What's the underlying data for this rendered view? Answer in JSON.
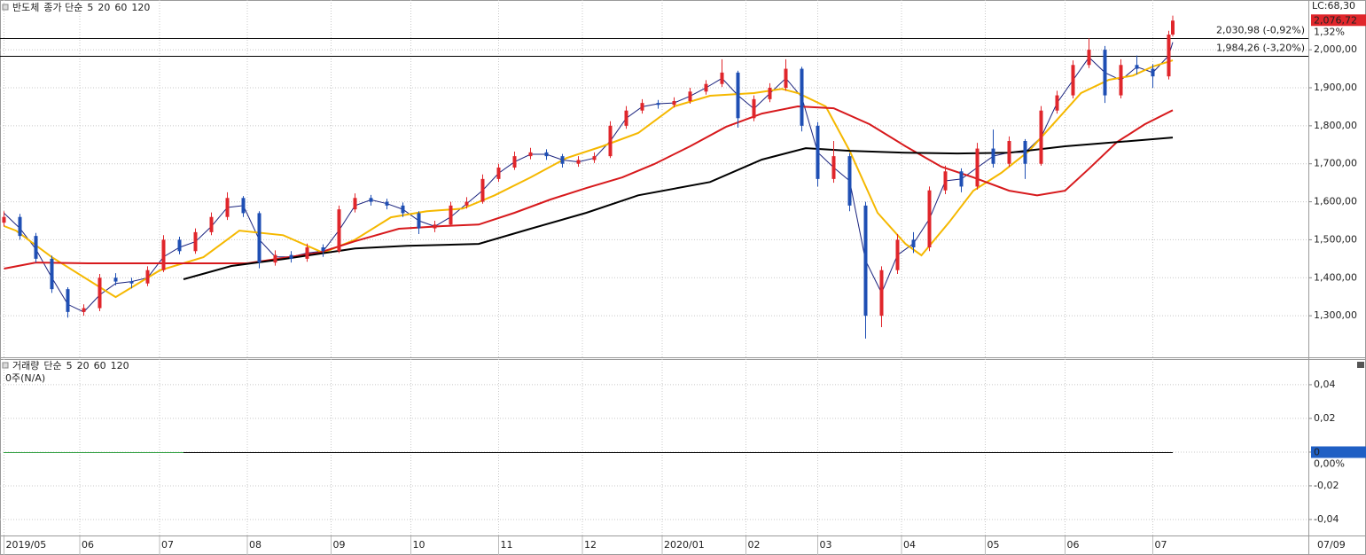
{
  "chart_data": [
    {
      "type": "candlestick",
      "title": "반도체",
      "legend_prefix": "종가 단순",
      "x": [
        0,
        4,
        8,
        12,
        16,
        20,
        24,
        28,
        32,
        36,
        40,
        44,
        48,
        52,
        56,
        60,
        64,
        68,
        72,
        76,
        80,
        84,
        88,
        92,
        96,
        100,
        104,
        108,
        112,
        116,
        120,
        124,
        128,
        132,
        136,
        140,
        144,
        148,
        152,
        156,
        160,
        164,
        168,
        172,
        176,
        180,
        184,
        188,
        192,
        196,
        200,
        204,
        208,
        212,
        216,
        220,
        224,
        228,
        232,
        236,
        240,
        244,
        248,
        252,
        256,
        260,
        264,
        268,
        272,
        276,
        280,
        284,
        288,
        292,
        293
      ],
      "open": [
        1545,
        1560,
        1510,
        1450,
        1370,
        1310,
        1320,
        1400,
        1390,
        1385,
        1420,
        1500,
        1470,
        1520,
        1560,
        1610,
        1570,
        1440,
        1460,
        1450,
        1480,
        1470,
        1580,
        1610,
        1600,
        1590,
        1570,
        1530,
        1540,
        1590,
        1600,
        1660,
        1690,
        1720,
        1730,
        1720,
        1700,
        1710,
        1720,
        1800,
        1840,
        1860,
        1855,
        1865,
        1890,
        1910,
        1940,
        1820,
        1870,
        1900,
        1950,
        1800,
        1660,
        1720,
        1590,
        1300,
        1420,
        1500,
        1480,
        1630,
        1680,
        1640,
        1740,
        1700,
        1760,
        1700,
        1840,
        1880,
        1960,
        2000,
        1880,
        1960,
        1950,
        1930,
        2040
      ],
      "high": [
        1575,
        1568,
        1518,
        1458,
        1375,
        1330,
        1410,
        1412,
        1400,
        1430,
        1512,
        1508,
        1530,
        1572,
        1625,
        1615,
        1575,
        1472,
        1470,
        1490,
        1488,
        1590,
        1622,
        1618,
        1608,
        1598,
        1575,
        1550,
        1600,
        1612,
        1672,
        1700,
        1732,
        1742,
        1738,
        1726,
        1720,
        1730,
        1812,
        1852,
        1870,
        1868,
        1875,
        1900,
        1920,
        1975,
        1945,
        1880,
        1912,
        1975,
        1955,
        1810,
        1760,
        1728,
        1600,
        1430,
        1515,
        1520,
        1640,
        1695,
        1688,
        1755,
        1790,
        1772,
        1765,
        1852,
        1892,
        1972,
        2030,
        2010,
        1975,
        1985,
        1962,
        2050,
        2090
      ],
      "low": [
        1535,
        1500,
        1440,
        1360,
        1295,
        1300,
        1312,
        1380,
        1372,
        1378,
        1415,
        1462,
        1463,
        1512,
        1552,
        1560,
        1425,
        1432,
        1440,
        1442,
        1455,
        1465,
        1572,
        1590,
        1580,
        1560,
        1515,
        1520,
        1535,
        1582,
        1595,
        1652,
        1684,
        1712,
        1710,
        1690,
        1692,
        1702,
        1715,
        1792,
        1832,
        1845,
        1848,
        1858,
        1882,
        1902,
        1795,
        1812,
        1862,
        1892,
        1785,
        1640,
        1650,
        1575,
        1240,
        1270,
        1410,
        1465,
        1470,
        1620,
        1625,
        1632,
        1690,
        1692,
        1660,
        1695,
        1832,
        1872,
        1952,
        1860,
        1872,
        1935,
        1900,
        1922,
        2035
      ],
      "close": [
        1560,
        1510,
        1450,
        1370,
        1310,
        1320,
        1400,
        1390,
        1385,
        1420,
        1500,
        1470,
        1520,
        1560,
        1610,
        1570,
        1440,
        1460,
        1450,
        1480,
        1470,
        1580,
        1610,
        1600,
        1590,
        1570,
        1530,
        1540,
        1590,
        1600,
        1660,
        1690,
        1720,
        1730,
        1720,
        1700,
        1710,
        1720,
        1800,
        1840,
        1860,
        1855,
        1865,
        1890,
        1910,
        1940,
        1820,
        1870,
        1900,
        1950,
        1800,
        1660,
        1720,
        1590,
        1300,
        1420,
        1500,
        1480,
        1630,
        1680,
        1640,
        1740,
        1700,
        1760,
        1700,
        1840,
        1880,
        1960,
        2000,
        1880,
        1960,
        1950,
        1930,
        2040,
        2076.72
      ],
      "up_color": "#e0262b",
      "down_color": "#1f4fb4",
      "series": [
        {
          "name": "5",
          "color": "#1a237e",
          "values": [
            1570,
            1530,
            1475,
            1400,
            1330,
            1310,
            1355,
            1385,
            1390,
            1400,
            1455,
            1480,
            1495,
            1535,
            1585,
            1590,
            1500,
            1455,
            1455,
            1465,
            1470,
            1525,
            1590,
            1605,
            1595,
            1580,
            1550,
            1535,
            1560,
            1595,
            1630,
            1675,
            1705,
            1725,
            1725,
            1710,
            1705,
            1715,
            1760,
            1820,
            1850,
            1858,
            1860,
            1878,
            1900,
            1925,
            1880,
            1845,
            1885,
            1925,
            1875,
            1730,
            1690,
            1655,
            1445,
            1360,
            1460,
            1490,
            1555,
            1655,
            1660,
            1690,
            1720,
            1730,
            1730,
            1770,
            1860,
            1920,
            1980,
            1940,
            1920,
            1955,
            1940,
            1985,
            2020
          ]
        },
        {
          "name": "20",
          "color": "#f5b800",
          "x": [
            0,
            3,
            12,
            28,
            39,
            50,
            59,
            70,
            80,
            88,
            97,
            106,
            115,
            123,
            132,
            141,
            150,
            159,
            168,
            177,
            188,
            195,
            199,
            206,
            212,
            219,
            226,
            230,
            237,
            243,
            250,
            257,
            263,
            270,
            277,
            283,
            288,
            293
          ],
          "values": [
            1536,
            1524,
            1454,
            1349,
            1419,
            1454,
            1524,
            1512,
            1466,
            1500,
            1559,
            1575,
            1582,
            1617,
            1664,
            1715,
            1746,
            1781,
            1851,
            1879,
            1886,
            1897,
            1886,
            1851,
            1734,
            1571,
            1489,
            1459,
            1547,
            1629,
            1676,
            1734,
            1804,
            1886,
            1921,
            1932,
            1956,
            1972
          ]
        },
        {
          "name": "60",
          "color": "#d7191c",
          "x": [
            0,
            8,
            21,
            43,
            61,
            79,
            88,
            99,
            110,
            119,
            128,
            137,
            146,
            155,
            163,
            172,
            181,
            190,
            199,
            208,
            217,
            226,
            235,
            243,
            252,
            259,
            266,
            272,
            279,
            286,
            293
          ],
          "values": [
            1424,
            1440,
            1438,
            1438,
            1438,
            1466,
            1496,
            1529,
            1536,
            1540,
            1571,
            1606,
            1636,
            1664,
            1699,
            1746,
            1797,
            1832,
            1851,
            1846,
            1804,
            1746,
            1692,
            1664,
            1629,
            1617,
            1629,
            1687,
            1757,
            1804,
            1841
          ]
        },
        {
          "name": "120",
          "color": "#000000",
          "x": [
            45,
            57,
            70,
            88,
            101,
            119,
            132,
            146,
            159,
            177,
            190,
            201,
            212,
            226,
            239,
            252,
            266,
            279,
            293
          ],
          "values": [
            1396,
            1431,
            1449,
            1477,
            1484,
            1489,
            1529,
            1571,
            1617,
            1652,
            1711,
            1741,
            1734,
            1729,
            1727,
            1729,
            1746,
            1757,
            1769
          ]
        }
      ],
      "hlines": [
        {
          "value": 2030.98,
          "label": "2,030,98 (-0,92%)"
        },
        {
          "value": 1984.26,
          "label": "1,984,26 (-3,20%)"
        }
      ],
      "last_label": "LC:68,30",
      "last_value": {
        "value": 2076.72,
        "label": "2,076,72"
      },
      "change_label": "1,32%",
      "xlim": [
        -1,
        327
      ],
      "ylim": [
        1193,
        2131
      ],
      "yticks": [
        {
          "value": 1300,
          "label": "1,300,00"
        },
        {
          "value": 1400,
          "label": "1,400,00"
        },
        {
          "value": 1500,
          "label": "1,500,00"
        },
        {
          "value": 1600,
          "label": "1,600,00"
        },
        {
          "value": 1700,
          "label": "1,700,00"
        },
        {
          "value": 1800,
          "label": "1,800,00"
        },
        {
          "value": 1900,
          "label": "1,900,00"
        },
        {
          "value": 2000,
          "label": "2,000,00"
        }
      ],
      "xticks": [
        {
          "value": 0,
          "label": "2019/05"
        },
        {
          "value": 19,
          "label": "06"
        },
        {
          "value": 39,
          "label": "07"
        },
        {
          "value": 61,
          "label": "08"
        },
        {
          "value": 82,
          "label": "09"
        },
        {
          "value": 102,
          "label": "10"
        },
        {
          "value": 124,
          "label": "11"
        },
        {
          "value": 145,
          "label": "12"
        },
        {
          "value": 165,
          "label": "2020/01"
        },
        {
          "value": 186,
          "label": "02"
        },
        {
          "value": 204,
          "label": "03"
        },
        {
          "value": 225,
          "label": "04"
        },
        {
          "value": 246,
          "label": "05"
        },
        {
          "value": 266,
          "label": "06"
        },
        {
          "value": 288,
          "label": "07"
        }
      ],
      "end_date_label": "07/09",
      "grid": true
    },
    {
      "type": "volume",
      "title": "거래량",
      "title_color": "#1b8fa0",
      "legend_prefix": "단순",
      "subtitle": "0주(N/A)",
      "series": [
        {
          "name": "5",
          "color": "#1a237e"
        },
        {
          "name": "20",
          "color": "#d7191c"
        },
        {
          "name": "60",
          "color": "#2e9e3e"
        },
        {
          "name": "120",
          "color": "#000000"
        }
      ],
      "ylim": [
        -0.0495,
        0.0547
      ],
      "yticks": [
        {
          "value": 0.04,
          "label": "0,04"
        },
        {
          "value": 0.02,
          "label": "0,02"
        },
        {
          "value": 0,
          "label": "0"
        },
        {
          "value": -0.02,
          "label": "-0,02"
        },
        {
          "value": -0.04,
          "label": "-0,04"
        }
      ],
      "last_value": {
        "value": 0,
        "label": "0"
      },
      "change_label": "0,00%",
      "grid": true
    }
  ]
}
